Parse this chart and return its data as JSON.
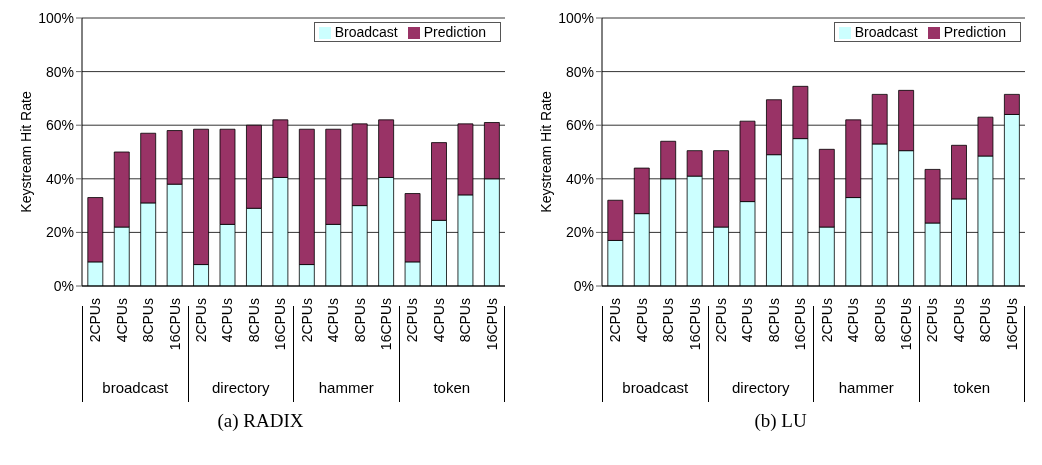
{
  "chart_data": [
    {
      "type": "bar",
      "title": "(a) RADIX",
      "ylabel": "Keystream Hit Rate",
      "stacked": true,
      "grid": "y",
      "legend": "top right",
      "categories": [
        "2CPUs",
        "4CPUs",
        "8CPUs",
        "16CPUs",
        "2CPUs",
        "4CPUs",
        "8CPUs",
        "16CPUs",
        "2CPUs",
        "4CPUs",
        "8CPUs",
        "16CPUs",
        "2CPUs",
        "4CPUs",
        "8CPUs",
        "16CPUs"
      ],
      "annotations": [
        "broadcast",
        "directory",
        "hammer",
        "token"
      ],
      "ylim": [
        0,
        100
      ],
      "yticks": [
        {
          "value": 0,
          "label": "0%"
        },
        {
          "value": 20,
          "label": "20%"
        },
        {
          "value": 40,
          "label": "40%"
        },
        {
          "value": 60,
          "label": "60%"
        },
        {
          "value": 80,
          "label": "80%"
        },
        {
          "value": 100,
          "label": "100%"
        }
      ],
      "series": [
        {
          "name": "Broadcast",
          "color": "#ccffff",
          "values": [
            9,
            22,
            31,
            38,
            8,
            23,
            29,
            40.5,
            8,
            23,
            30,
            40.5,
            9,
            24.5,
            34,
            40
          ]
        },
        {
          "name": "Prediction",
          "color": "#993366",
          "values": [
            24,
            28,
            26,
            20,
            50.5,
            35.5,
            31,
            21.5,
            50.5,
            35.5,
            30.5,
            21.5,
            25.5,
            29,
            26.5,
            21
          ]
        }
      ]
    },
    {
      "type": "bar",
      "title": "(b) LU",
      "ylabel": "Keystream Hit Rate",
      "stacked": true,
      "grid": "y",
      "legend": "top right",
      "categories": [
        "2CPUs",
        "4CPUs",
        "8CPUs",
        "16CPUs",
        "2CPUs",
        "4CPUs",
        "8CPUs",
        "16CPUs",
        "2CPUs",
        "4CPUs",
        "8CPUs",
        "16CPUs",
        "2CPUs",
        "4CPUs",
        "8CPUs",
        "16CPUs"
      ],
      "annotations": [
        "broadcast",
        "directory",
        "hammer",
        "token"
      ],
      "ylim": [
        0,
        100
      ],
      "yticks": [
        {
          "value": 0,
          "label": "0%"
        },
        {
          "value": 20,
          "label": "20%"
        },
        {
          "value": 40,
          "label": "40%"
        },
        {
          "value": 60,
          "label": "60%"
        },
        {
          "value": 80,
          "label": "80%"
        },
        {
          "value": 100,
          "label": "100%"
        }
      ],
      "series": [
        {
          "name": "Broadcast",
          "color": "#ccffff",
          "values": [
            17,
            27,
            40,
            41,
            22,
            31.5,
            49,
            55,
            22,
            33,
            53,
            50.5,
            23.5,
            32.5,
            48.5,
            64
          ]
        },
        {
          "name": "Prediction",
          "color": "#993366",
          "values": [
            15,
            17,
            14,
            9.5,
            28.5,
            30,
            20.5,
            19.5,
            29,
            29,
            18.5,
            22.5,
            20,
            20,
            14.5,
            7.5
          ]
        }
      ]
    }
  ]
}
